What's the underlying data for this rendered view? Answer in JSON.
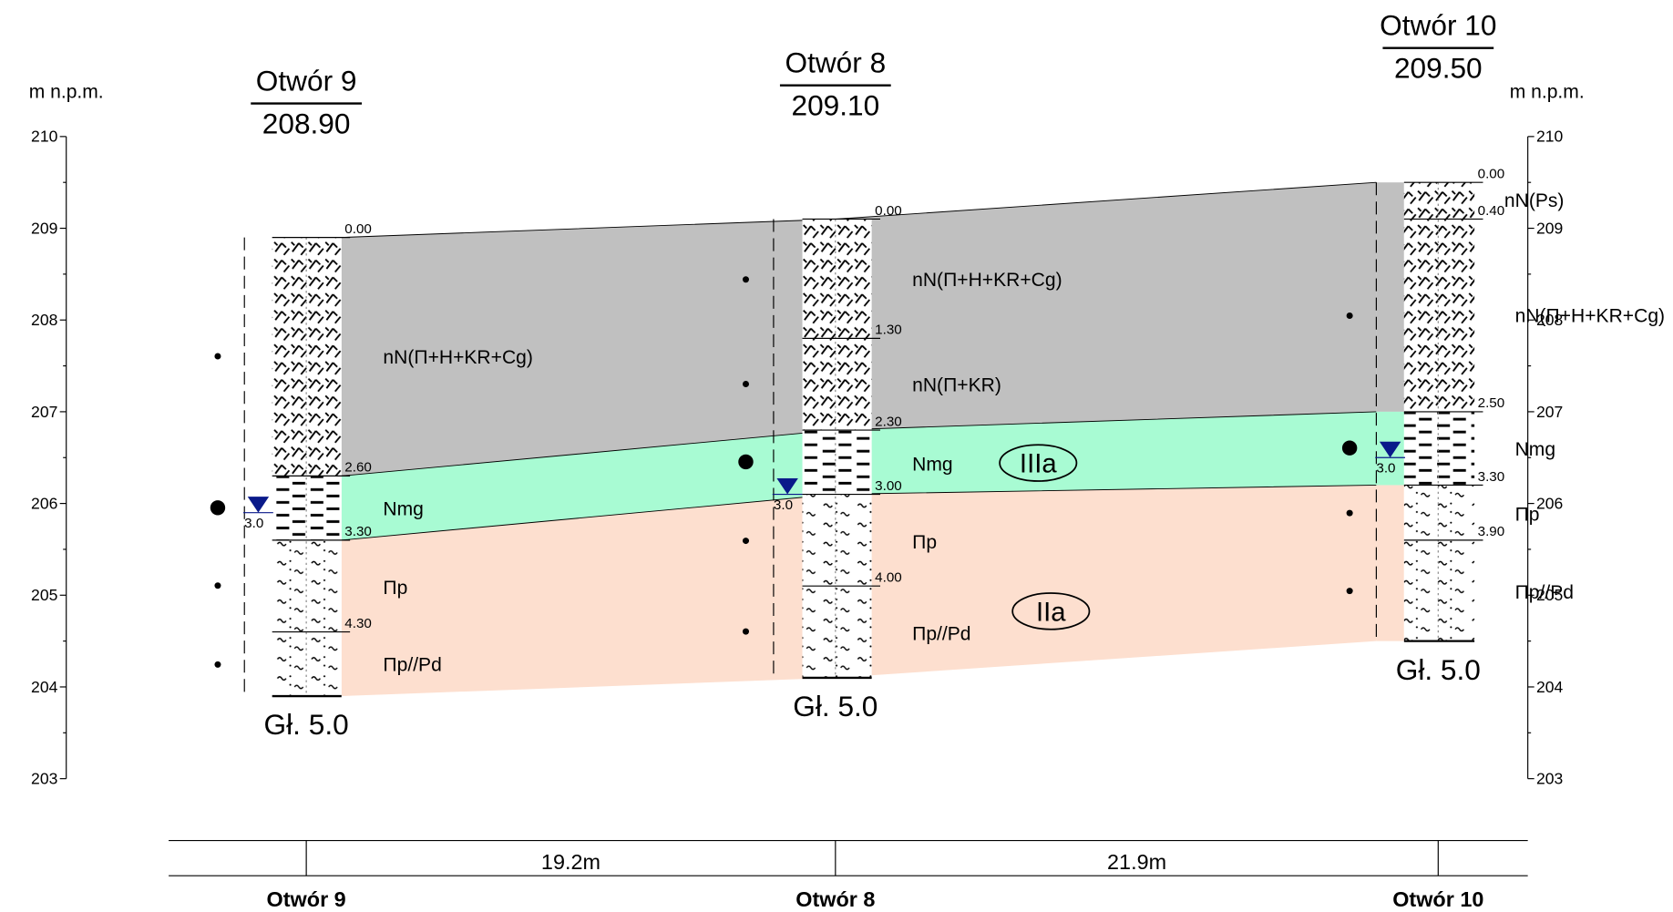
{
  "axis": {
    "label": "m n.p.m.",
    "ticks": [
      "210",
      "209",
      "208",
      "207",
      "206",
      "205",
      "204",
      "203"
    ]
  },
  "boreholes": [
    {
      "name": "Otwór 9",
      "elevation": "208.90",
      "depths": [
        "0.00",
        "2.60",
        "3.30",
        "4.30"
      ],
      "bottom": "Gł. 5.0",
      "water": "3.0"
    },
    {
      "name": "Otwór 8",
      "elevation": "209.10",
      "depths": [
        "0.00",
        "1.30",
        "2.30",
        "3.00",
        "4.00"
      ],
      "bottom": "Gł. 5.0",
      "water": "3.0"
    },
    {
      "name": "Otwór 10",
      "elevation": "209.50",
      "depths": [
        "0.00",
        "0.40",
        "2.50",
        "3.30",
        "3.90"
      ],
      "bottom": "Gł. 5.0",
      "water": "3.0"
    }
  ],
  "layer_labels": [
    "nN(Π+H+KR+Cg)",
    "Nmg",
    "Πp",
    "Πp//Pd",
    "nN(Π+H+KR+Cg)",
    "nN(Π+KR)",
    "Nmg",
    "Πp",
    "Πp//Pd"
  ],
  "right_labels": [
    "nN(Ps)",
    "nN(Π+H+KR+Cg)",
    "Nmg",
    "Πp",
    "Πp//Pd"
  ],
  "zones": [
    "IIIa",
    "IIa"
  ],
  "distances": [
    "19.2m",
    "21.9m"
  ]
}
